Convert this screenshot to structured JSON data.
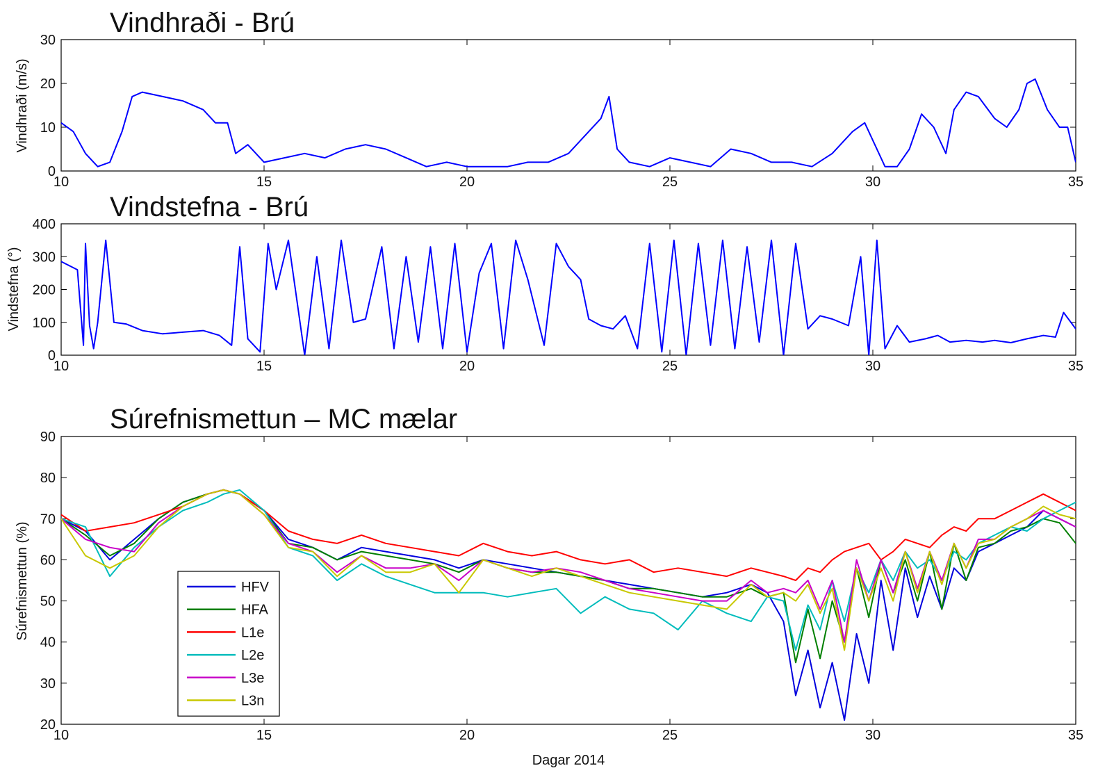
{
  "chart_data": [
    {
      "type": "line",
      "title": "Vindhraði - Brú",
      "ylabel": "Vindhraði (m/s)",
      "xlabel": "",
      "xlim": [
        10,
        35
      ],
      "ylim": [
        0,
        30
      ],
      "xticks": [
        10,
        15,
        20,
        25,
        30,
        35
      ],
      "yticks": [
        0,
        10,
        20,
        30
      ],
      "grid": false,
      "series": [
        {
          "color": "#0000ff",
          "x": [
            10,
            10.3,
            10.6,
            10.9,
            11.2,
            11.5,
            11.75,
            12,
            12.5,
            13,
            13.5,
            13.8,
            14.1,
            14.3,
            14.6,
            15,
            15.5,
            16,
            16.5,
            17,
            17.5,
            18,
            18.5,
            19,
            19.5,
            20,
            20.5,
            21,
            21.5,
            22,
            22.5,
            23,
            23.3,
            23.5,
            23.7,
            24,
            24.5,
            25,
            25.5,
            26,
            26.5,
            27,
            27.5,
            28,
            28.5,
            29,
            29.5,
            29.8,
            30,
            30.3,
            30.6,
            30.9,
            31.2,
            31.5,
            31.8,
            32,
            32.3,
            32.6,
            33,
            33.3,
            33.6,
            33.8,
            34,
            34.3,
            34.6,
            34.8,
            35
          ],
          "y": [
            11,
            9,
            4,
            1,
            2,
            9,
            17,
            18,
            17,
            16,
            14,
            11,
            11,
            4,
            6,
            2,
            3,
            4,
            3,
            5,
            6,
            5,
            3,
            1,
            2,
            1,
            1,
            1,
            2,
            2,
            4,
            9,
            12,
            17,
            5,
            2,
            1,
            3,
            2,
            1,
            5,
            4,
            2,
            2,
            1,
            4,
            9,
            11,
            7,
            1,
            1,
            5,
            13,
            10,
            4,
            14,
            18,
            17,
            12,
            10,
            14,
            20,
            21,
            14,
            10,
            10,
            2
          ]
        }
      ]
    },
    {
      "type": "line",
      "title": "Vindstefna - Brú",
      "ylabel": "Vindstefna (°)",
      "xlabel": "",
      "xlim": [
        10,
        35
      ],
      "ylim": [
        0,
        400
      ],
      "xticks": [
        10,
        15,
        20,
        25,
        30,
        35
      ],
      "yticks": [
        0,
        100,
        200,
        300,
        400
      ],
      "grid": false,
      "series": [
        {
          "color": "#0000ff",
          "x": [
            10,
            10.4,
            10.55,
            10.6,
            10.7,
            10.8,
            10.9,
            11.1,
            11.3,
            11.6,
            12,
            12.5,
            13,
            13.5,
            13.9,
            14.2,
            14.4,
            14.6,
            14.9,
            15.1,
            15.3,
            15.6,
            16,
            16.3,
            16.6,
            16.9,
            17.2,
            17.5,
            17.9,
            18.2,
            18.5,
            18.8,
            19.1,
            19.4,
            19.7,
            20,
            20.3,
            20.6,
            20.9,
            21.2,
            21.5,
            21.9,
            22.2,
            22.5,
            22.8,
            23,
            23.3,
            23.6,
            23.9,
            24.2,
            24.5,
            24.8,
            25.1,
            25.4,
            25.7,
            26,
            26.3,
            26.6,
            26.9,
            27.2,
            27.5,
            27.8,
            28.1,
            28.4,
            28.7,
            29,
            29.4,
            29.7,
            29.9,
            30.1,
            30.3,
            30.6,
            30.9,
            31.3,
            31.6,
            31.9,
            32.3,
            32.7,
            33,
            33.4,
            33.8,
            34.2,
            34.5,
            34.7,
            35
          ],
          "y": [
            285,
            260,
            30,
            340,
            90,
            20,
            100,
            350,
            100,
            95,
            75,
            65,
            70,
            75,
            60,
            30,
            330,
            50,
            10,
            340,
            200,
            350,
            0,
            300,
            20,
            350,
            100,
            110,
            330,
            20,
            300,
            40,
            330,
            20,
            340,
            10,
            250,
            340,
            20,
            350,
            230,
            30,
            340,
            270,
            230,
            110,
            90,
            80,
            120,
            20,
            340,
            10,
            350,
            0,
            340,
            30,
            350,
            20,
            330,
            40,
            350,
            0,
            340,
            80,
            120,
            110,
            90,
            300,
            0,
            350,
            20,
            90,
            40,
            50,
            60,
            40,
            45,
            40,
            45,
            38,
            50,
            60,
            55,
            130,
            80
          ]
        }
      ]
    },
    {
      "type": "line",
      "title": "Súrefnismettun – MC mælar",
      "ylabel": "Súrefnismettun (%)",
      "xlabel": "Dagar 2014",
      "xlim": [
        10,
        35
      ],
      "ylim": [
        20,
        90
      ],
      "xticks": [
        10,
        15,
        20,
        25,
        30,
        35
      ],
      "yticks": [
        20,
        30,
        40,
        50,
        60,
        70,
        80,
        90
      ],
      "grid": false,
      "legend": "inside-left",
      "x": [
        10,
        10.6,
        11.2,
        11.8,
        12.4,
        13,
        13.6,
        14,
        14.4,
        15,
        15.6,
        16.2,
        16.8,
        17.4,
        18,
        18.6,
        19.2,
        19.8,
        20.4,
        21,
        21.6,
        22.2,
        22.8,
        23.4,
        24,
        24.6,
        25.2,
        25.8,
        26.4,
        27,
        27.4,
        27.8,
        28.1,
        28.4,
        28.7,
        29,
        29.3,
        29.6,
        29.9,
        30.2,
        30.5,
        30.8,
        31.1,
        31.4,
        31.7,
        32,
        32.3,
        32.6,
        33,
        33.4,
        33.8,
        34.2,
        34.6,
        35
      ],
      "series": [
        {
          "name": "HFV",
          "color": "#0000dd",
          "y": [
            70,
            67,
            60,
            65,
            70,
            74,
            76,
            77,
            76,
            72,
            65,
            63,
            60,
            63,
            62,
            61,
            60,
            58,
            60,
            59,
            58,
            57,
            56,
            55,
            54,
            53,
            52,
            51,
            52,
            54,
            52,
            45,
            27,
            38,
            24,
            35,
            21,
            42,
            30,
            55,
            38,
            58,
            46,
            56,
            48,
            58,
            55,
            62,
            64,
            66,
            68,
            72,
            70,
            68
          ]
        },
        {
          "name": "HFA",
          "color": "#007f00",
          "y": [
            70,
            66,
            61,
            64,
            70,
            74,
            76,
            77,
            76,
            72,
            64,
            63,
            60,
            62,
            61,
            60,
            59,
            57,
            60,
            58,
            57,
            57,
            56,
            55,
            53,
            53,
            52,
            51,
            51,
            53,
            51,
            52,
            35,
            48,
            36,
            50,
            40,
            58,
            46,
            60,
            52,
            60,
            50,
            62,
            48,
            64,
            55,
            63,
            64,
            67,
            68,
            70,
            69,
            64
          ]
        },
        {
          "name": "L1e",
          "color": "#ff0000",
          "y": [
            71,
            67,
            68,
            69,
            71,
            73,
            76,
            77,
            76,
            72,
            67,
            65,
            64,
            66,
            64,
            63,
            62,
            61,
            64,
            62,
            61,
            62,
            60,
            59,
            60,
            57,
            58,
            57,
            56,
            58,
            57,
            56,
            55,
            58,
            57,
            60,
            62,
            63,
            64,
            60,
            62,
            65,
            64,
            63,
            66,
            68,
            67,
            70,
            70,
            72,
            74,
            76,
            74,
            72
          ]
        },
        {
          "name": "L2e",
          "color": "#00bcbc",
          "y": [
            70,
            68,
            56,
            63,
            68,
            72,
            74,
            76,
            77,
            72,
            63,
            61,
            55,
            59,
            56,
            54,
            52,
            52,
            52,
            51,
            52,
            53,
            47,
            51,
            48,
            47,
            43,
            50,
            47,
            45,
            51,
            50,
            38,
            49,
            43,
            55,
            45,
            58,
            52,
            60,
            55,
            62,
            58,
            60,
            55,
            62,
            60,
            64,
            66,
            68,
            67,
            70,
            72,
            74
          ]
        },
        {
          "name": "L3e",
          "color": "#c800c8",
          "y": [
            70,
            65,
            63,
            62,
            69,
            73,
            76,
            77,
            76,
            71,
            64,
            62,
            57,
            61,
            58,
            58,
            59,
            55,
            60,
            58,
            57,
            58,
            57,
            55,
            53,
            52,
            51,
            50,
            50,
            55,
            52,
            53,
            52,
            55,
            48,
            55,
            40,
            60,
            50,
            60,
            52,
            62,
            53,
            62,
            55,
            64,
            58,
            65,
            65,
            68,
            70,
            72,
            70,
            68
          ]
        },
        {
          "name": "L3n",
          "color": "#c8c800",
          "y": [
            70,
            61,
            58,
            61,
            68,
            73,
            76,
            77,
            76,
            71,
            63,
            62,
            56,
            61,
            57,
            57,
            59,
            52,
            60,
            58,
            56,
            58,
            56,
            54,
            52,
            51,
            50,
            49,
            48,
            54,
            51,
            52,
            50,
            54,
            47,
            53,
            38,
            58,
            50,
            58,
            50,
            62,
            52,
            62,
            54,
            64,
            58,
            64,
            65,
            68,
            70,
            73,
            71,
            70
          ]
        }
      ]
    }
  ]
}
